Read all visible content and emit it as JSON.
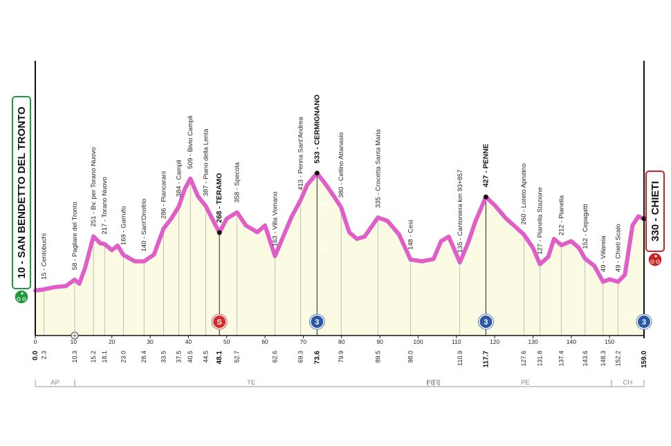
{
  "chart_data": {
    "type": "area",
    "title": "",
    "xlabel": "",
    "ylabel": "",
    "xlim": [
      0,
      159
    ],
    "ylim": [
      0,
      700
    ],
    "x_ticks": [
      0,
      10,
      20,
      30,
      40,
      50,
      60,
      70,
      80,
      90,
      100,
      110,
      120,
      130,
      140,
      150
    ],
    "y_ticks": [
      200,
      400
    ],
    "profile": [
      [
        0,
        10
      ],
      [
        2.3,
        15
      ],
      [
        5,
        25
      ],
      [
        8,
        30
      ],
      [
        10.3,
        58
      ],
      [
        11.5,
        40
      ],
      [
        13,
        110
      ],
      [
        15.2,
        251
      ],
      [
        17,
        220
      ],
      [
        18.1,
        217
      ],
      [
        20,
        190
      ],
      [
        21.5,
        210
      ],
      [
        23,
        169
      ],
      [
        26,
        140
      ],
      [
        28.4,
        140
      ],
      [
        31,
        170
      ],
      [
        33.5,
        286
      ],
      [
        35.5,
        330
      ],
      [
        37.5,
        384
      ],
      [
        39,
        460
      ],
      [
        40.5,
        509
      ],
      [
        42.5,
        430
      ],
      [
        44.5,
        387
      ],
      [
        46.5,
        320
      ],
      [
        48.1,
        268
      ],
      [
        50,
        330
      ],
      [
        52.7,
        358
      ],
      [
        55,
        300
      ],
      [
        58,
        270
      ],
      [
        60,
        300
      ],
      [
        62.6,
        163
      ],
      [
        65,
        260
      ],
      [
        67,
        340
      ],
      [
        69.3,
        413
      ],
      [
        71,
        480
      ],
      [
        73.6,
        533
      ],
      [
        76,
        480
      ],
      [
        78,
        430
      ],
      [
        79.9,
        380
      ],
      [
        82,
        270
      ],
      [
        84,
        240
      ],
      [
        86,
        250
      ],
      [
        89.5,
        335
      ],
      [
        92,
        320
      ],
      [
        95,
        260
      ],
      [
        98,
        148
      ],
      [
        101,
        140
      ],
      [
        104,
        150
      ],
      [
        106,
        230
      ],
      [
        108,
        250
      ],
      [
        110.9,
        135
      ],
      [
        113,
        220
      ],
      [
        115,
        320
      ],
      [
        117.7,
        427
      ],
      [
        120,
        390
      ],
      [
        123,
        330
      ],
      [
        125,
        300
      ],
      [
        127.6,
        260
      ],
      [
        130,
        200
      ],
      [
        131.8,
        127
      ],
      [
        134,
        160
      ],
      [
        135.5,
        240
      ],
      [
        137.4,
        212
      ],
      [
        140,
        230
      ],
      [
        142,
        200
      ],
      [
        143.6,
        152
      ],
      [
        146,
        120
      ],
      [
        148.3,
        49
      ],
      [
        150,
        60
      ],
      [
        152.2,
        49
      ],
      [
        154,
        80
      ],
      [
        156,
        300
      ],
      [
        157.5,
        340
      ],
      [
        159,
        330
      ]
    ],
    "points": [
      {
        "km": "2.3",
        "x": 2.3,
        "label": "15 - Centobuchi"
      },
      {
        "km": "10.3",
        "x": 10.3,
        "label": "58 - Pagliare del Tronto"
      },
      {
        "km": "15.2",
        "x": 15.2,
        "label": "251 - Bv. per Torano Nuovo"
      },
      {
        "km": "18.1",
        "x": 18.1,
        "label": "217 - Torano Nuovo"
      },
      {
        "km": "23.0",
        "x": 23.0,
        "label": "169 - Garrufo"
      },
      {
        "km": "28.4",
        "x": 28.4,
        "label": "140 - Sant'Onofrio"
      },
      {
        "km": "33.5",
        "x": 33.5,
        "label": "286 - Piancarani"
      },
      {
        "km": "37.5",
        "x": 37.5,
        "label": "384 - Campli"
      },
      {
        "km": "40.5",
        "x": 40.5,
        "label": "509 - Bivio Campli"
      },
      {
        "km": "44.5",
        "x": 44.5,
        "label": "387 - Piano della Lenta"
      },
      {
        "km": "48.1",
        "x": 48.1,
        "label": "268 - TERAMO",
        "bold": true
      },
      {
        "km": "52.7",
        "x": 52.7,
        "label": "358 - Specola"
      },
      {
        "km": "62.6",
        "x": 62.6,
        "label": "163 - Villa Vomano"
      },
      {
        "km": "69.3",
        "x": 69.3,
        "label": "413 - Penna Sant'Andrea"
      },
      {
        "km": "73.6",
        "x": 73.6,
        "label": "533 - CERMIGNANO",
        "bold": true
      },
      {
        "km": "79.9",
        "x": 79.9,
        "label": "380 - Cellino Attanasio"
      },
      {
        "km": "89.5",
        "x": 89.5,
        "label": "335 - Crocetta Santa Maria"
      },
      {
        "km": "98.0",
        "x": 98.0,
        "label": "148 - Cesi"
      },
      {
        "km": "110.9",
        "x": 110.9,
        "label": "135 - Cantoniera km 93+857"
      },
      {
        "km": "117.7",
        "x": 117.7,
        "label": "427 - PENNE",
        "bold": true
      },
      {
        "km": "127.6",
        "x": 127.6,
        "label": "260 - Loreto Aprutino"
      },
      {
        "km": "131.8",
        "x": 131.8,
        "label": "127 - Pianella Stazione"
      },
      {
        "km": "137.4",
        "x": 137.4,
        "label": "212 - Pianella"
      },
      {
        "km": "143.6",
        "x": 143.6,
        "label": "152 - Cepagatti"
      },
      {
        "km": "148.3",
        "x": 148.3,
        "label": "49 - Villareia"
      },
      {
        "km": "152.2",
        "x": 152.2,
        "label": "49 - Chieti Scalo"
      }
    ],
    "start": {
      "km": "0.0",
      "label": "10 - SAN BENDETTO DEL TRONTO",
      "color": "#1e9a3c"
    },
    "finish": {
      "km": "159.0",
      "label": "330 - CHIETI",
      "color": "#cc2222"
    },
    "markers": [
      {
        "x": 48.1,
        "text": "S",
        "color": "#d62b2b"
      },
      {
        "x": 73.6,
        "text": "3",
        "color": "#2c5aa8"
      },
      {
        "x": 117.7,
        "text": "3",
        "color": "#2c5aa8"
      },
      {
        "x": 159,
        "text": "3",
        "color": "#2c5aa8"
      }
    ],
    "sprint_marker_x": 10.3,
    "provinces": [
      {
        "name": "AP",
        "from": 0,
        "to": 10.3
      },
      {
        "name": "TE",
        "from": 10.3,
        "to": 102.5
      },
      {
        "name": "PE",
        "from": 102.5,
        "to": 104
      },
      {
        "name": "TE",
        "from": 104,
        "to": 105.5
      },
      {
        "name": "PE",
        "from": 105.5,
        "to": 150.5
      },
      {
        "name": "CH",
        "from": 150.5,
        "to": 159
      }
    ],
    "colors": {
      "profile_line": "#e05ec8",
      "profile_fill": "#fbfbe3",
      "grid": "#999999"
    }
  }
}
